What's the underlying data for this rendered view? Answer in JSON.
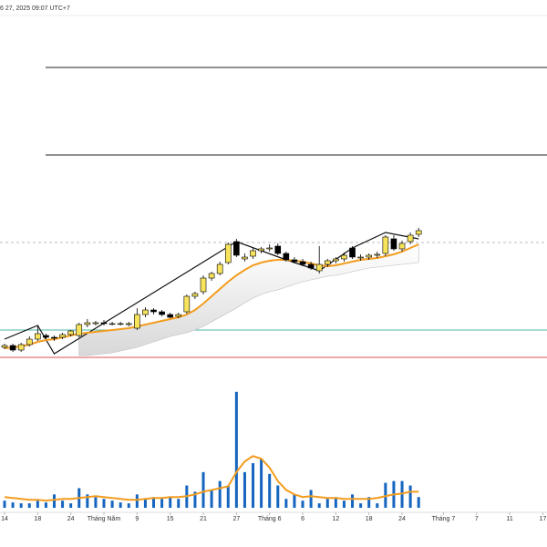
{
  "chart_data": {
    "type": "candlestick",
    "title": "6 27, 2025 09:07 UTC+7",
    "xlim": [
      -0.55,
      65.5
    ],
    "xticks": [
      {
        "value": 0,
        "label": "14"
      },
      {
        "value": 4,
        "label": "18"
      },
      {
        "value": 8,
        "label": "24"
      },
      {
        "value": 12,
        "label": "Tháng Năm"
      },
      {
        "value": 16,
        "label": "9"
      },
      {
        "value": 20,
        "label": "15"
      },
      {
        "value": 24,
        "label": "21"
      },
      {
        "value": 28,
        "label": "27"
      },
      {
        "value": 32,
        "label": "Tháng 6"
      },
      {
        "value": 36,
        "label": "6"
      },
      {
        "value": 40,
        "label": "12"
      },
      {
        "value": 44,
        "label": "18"
      },
      {
        "value": 48,
        "label": "24"
      },
      {
        "value": 53,
        "label": "Tháng 7"
      },
      {
        "value": 57,
        "label": "7"
      },
      {
        "value": 61,
        "label": "11"
      },
      {
        "value": 65,
        "label": "17"
      }
    ],
    "ylim": [
      0,
      400
    ],
    "vol_ylim": [
      0,
      140
    ],
    "up_color": "#f7e35c",
    "down_color": "#000000",
    "ma_color": "#f39c1e",
    "volume_color": "#1565c0",
    "band_color": "#d8d8d8",
    "open": [
      19,
      21,
      16,
      22,
      28,
      32,
      30,
      30,
      33,
      32,
      44,
      45,
      46,
      45,
      45,
      44,
      40,
      55,
      60,
      58,
      55,
      53,
      58,
      75,
      80,
      95,
      100,
      112,
      135,
      116,
      119,
      125,
      127,
      130,
      122,
      115,
      113,
      110,
      103,
      110,
      114,
      116,
      128,
      117,
      118,
      120,
      122,
      138,
      127,
      135,
      143
    ],
    "high": [
      23,
      23,
      24,
      31,
      43,
      34,
      32,
      35,
      38,
      46,
      50,
      48,
      49,
      47,
      47,
      47,
      62,
      63,
      62,
      60,
      57,
      57,
      77,
      80,
      98,
      102,
      113,
      134,
      138,
      122,
      128,
      129,
      132,
      133,
      124,
      118,
      116,
      113,
      130,
      116,
      118,
      123,
      130,
      121,
      122,
      124,
      142,
      142,
      136,
      145,
      150
    ],
    "low": [
      17,
      14,
      14,
      20,
      26,
      28,
      26,
      28,
      31,
      30,
      41,
      43,
      43,
      43,
      43,
      42,
      38,
      52,
      55,
      53,
      51,
      51,
      56,
      72,
      77,
      92,
      98,
      110,
      118,
      113,
      116,
      122,
      124,
      120,
      113,
      111,
      108,
      104,
      100,
      107,
      111,
      113,
      116,
      114,
      115,
      117,
      119,
      125,
      124,
      132,
      140
    ],
    "close": [
      21,
      16,
      22,
      28,
      34,
      30,
      29,
      33,
      37,
      44,
      46,
      46,
      45,
      45,
      45,
      45,
      55,
      60,
      58,
      55,
      52,
      55,
      75,
      78,
      95,
      100,
      110,
      132,
      120,
      118,
      125,
      127,
      128,
      122,
      115,
      113,
      110,
      106,
      110,
      114,
      116,
      120,
      118,
      118,
      120,
      121,
      140,
      127,
      133,
      142,
      147
    ],
    "ma": [
      18,
      19,
      20,
      22,
      25,
      27,
      28,
      30,
      32,
      34,
      35,
      36,
      37,
      38,
      39,
      40,
      42,
      44,
      46,
      48,
      50,
      52,
      55,
      60,
      67,
      75,
      83,
      91,
      98,
      104,
      109,
      112,
      114,
      115,
      115,
      114,
      113,
      111,
      109,
      108,
      109,
      111,
      113,
      115,
      116,
      117,
      119,
      121,
      124,
      128,
      132
    ],
    "band_lower": [
      null,
      null,
      null,
      null,
      null,
      null,
      null,
      null,
      null,
      10,
      10,
      11,
      12,
      13,
      15,
      17,
      19,
      22,
      25,
      28,
      31,
      33,
      35,
      38,
      42,
      47,
      52,
      57,
      62,
      68,
      73,
      77,
      80,
      82,
      85,
      88,
      91,
      93,
      95,
      97,
      98,
      100,
      102,
      104,
      106,
      107,
      108,
      109,
      110,
      111,
      112
    ],
    "volume": [
      8,
      6,
      5,
      5,
      8,
      6,
      15,
      8,
      5,
      22,
      15,
      12,
      10,
      8,
      6,
      5,
      15,
      10,
      12,
      10,
      12,
      10,
      25,
      18,
      40,
      20,
      30,
      25,
      130,
      40,
      50,
      55,
      38,
      25,
      10,
      15,
      8,
      20,
      5,
      10,
      12,
      8,
      15,
      5,
      12,
      5,
      28,
      30,
      30,
      25,
      12
    ],
    "volume_ma": [
      12,
      11,
      10,
      9,
      9,
      8,
      9,
      10,
      10,
      11,
      12,
      13,
      12,
      11,
      10,
      9,
      9,
      10,
      11,
      11,
      12,
      12,
      13,
      15,
      18,
      20,
      22,
      24,
      40,
      52,
      58,
      55,
      45,
      30,
      20,
      15,
      12,
      13,
      12,
      11,
      11,
      10,
      10,
      10,
      10,
      11,
      13,
      15,
      16,
      18,
      18
    ],
    "zigzag": {
      "x": [
        0,
        4,
        6,
        28,
        34,
        38,
        42,
        46,
        50
      ],
      "y": [
        28,
        43,
        12,
        135,
        115,
        103,
        128,
        145,
        138
      ]
    },
    "levels": [
      {
        "value": 326,
        "color": "#222222"
      },
      {
        "value": 230,
        "color": "#222222"
      },
      {
        "value": 134,
        "color": "#bbbbbb"
      },
      {
        "value": 38,
        "color": "#4fb7a8"
      },
      {
        "value": 8,
        "color": "#d9534f"
      }
    ]
  }
}
